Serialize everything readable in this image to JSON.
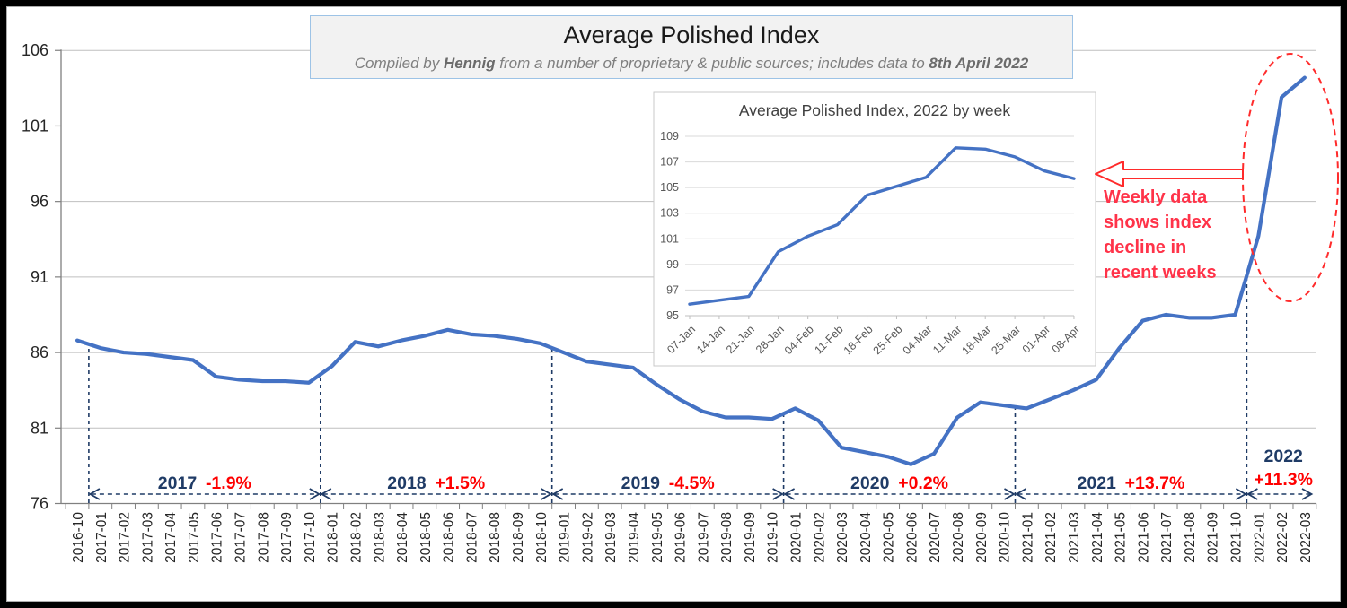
{
  "header": {
    "title": "Average Polished Index",
    "subtitle_prefix": "Compiled by ",
    "subtitle_author": "Hennig",
    "subtitle_middle": " from a number of proprietary & public sources; includes data to ",
    "subtitle_date": "8th April 2022"
  },
  "annotation": {
    "text": "Weekly data shows index decline in recent weeks"
  },
  "colors": {
    "series_blue": "#4472C4",
    "navy": "#1F3B66",
    "red": "#FF0000",
    "red_shape": "#FF2B2B",
    "grid": "#BFBFBF",
    "inset_grid": "#D9D9D9",
    "axis": "#808080",
    "tick_label": "#262626",
    "inset_label": "#595959"
  },
  "chart_data": [
    {
      "type": "line",
      "name": "monthly-index",
      "title": "Average Polished Index",
      "ylim": [
        76,
        106
      ],
      "yticks": [
        76,
        81,
        86,
        91,
        96,
        101,
        106
      ],
      "grid": true,
      "categories": [
        "2016-10",
        "2017-01",
        "2017-02",
        "2017-03",
        "2017-04",
        "2017-05",
        "2017-06",
        "2017-07",
        "2017-08",
        "2017-09",
        "2017-10",
        "2018-01",
        "2018-02",
        "2018-03",
        "2018-04",
        "2018-05",
        "2018-06",
        "2018-07",
        "2018-08",
        "2018-09",
        "2018-10",
        "2019-01",
        "2019-02",
        "2019-03",
        "2019-04",
        "2019-05",
        "2019-06",
        "2019-07",
        "2019-08",
        "2019-09",
        "2019-10",
        "2020-01",
        "2020-02",
        "2020-03",
        "2020-04",
        "2020-05",
        "2020-06",
        "2020-07",
        "2020-08",
        "2020-09",
        "2020-10",
        "2021-01",
        "2021-02",
        "2021-03",
        "2021-04",
        "2021-05",
        "2021-06",
        "2021-07",
        "2021-08",
        "2021-09",
        "2021-10",
        "2022-01",
        "2022-02",
        "2022-03"
      ],
      "values": [
        86.8,
        86.3,
        86.0,
        85.9,
        85.7,
        85.5,
        84.4,
        84.2,
        84.1,
        84.1,
        84.0,
        85.1,
        86.7,
        86.4,
        86.8,
        87.1,
        87.5,
        87.2,
        87.1,
        86.9,
        86.6,
        86.0,
        85.4,
        85.2,
        85.0,
        83.9,
        82.9,
        82.1,
        81.7,
        81.7,
        81.6,
        82.3,
        81.5,
        79.7,
        79.4,
        79.1,
        78.6,
        79.3,
        81.7,
        82.7,
        82.5,
        82.3,
        82.9,
        83.5,
        84.2,
        86.3,
        88.1,
        88.5,
        88.3,
        88.3,
        88.5,
        93.7,
        102.9,
        104.2
      ],
      "year_segments": [
        {
          "label": "2017",
          "change": "-1.9%"
        },
        {
          "label": "2018",
          "change": "+1.5%"
        },
        {
          "label": "2019",
          "change": "-4.5%"
        },
        {
          "label": "2020",
          "change": "+0.2%"
        },
        {
          "label": "2021",
          "change": "+13.7%"
        },
        {
          "label": "2022",
          "change": "+11.3%",
          "stacked": true
        }
      ]
    },
    {
      "type": "line",
      "name": "weekly-index-2022",
      "title": "Average Polished Index, 2022 by week",
      "ylim": [
        95,
        109
      ],
      "yticks": [
        95,
        97,
        99,
        101,
        103,
        105,
        107,
        109
      ],
      "grid": true,
      "categories": [
        "07-Jan",
        "14-Jan",
        "21-Jan",
        "28-Jan",
        "04-Feb",
        "11-Feb",
        "18-Feb",
        "25-Feb",
        "04-Mar",
        "11-Mar",
        "18-Mar",
        "25-Mar",
        "01-Apr",
        "08-Apr"
      ],
      "values": [
        95.9,
        96.2,
        96.5,
        100.0,
        101.2,
        102.1,
        104.4,
        105.1,
        105.8,
        108.1,
        108.0,
        107.4,
        106.3,
        105.7
      ]
    }
  ]
}
